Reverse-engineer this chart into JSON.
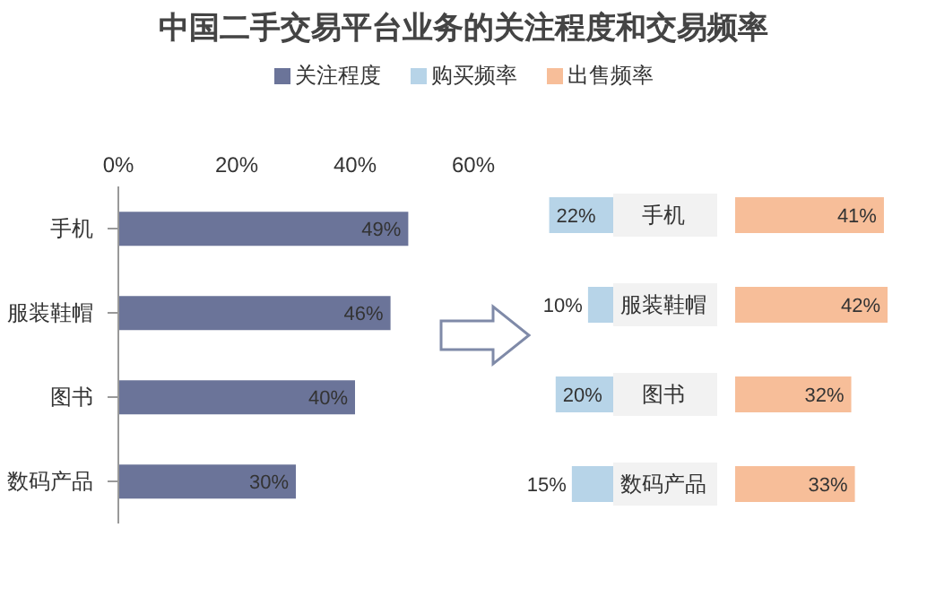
{
  "chart_data": [
    {
      "type": "bar",
      "orientation": "horizontal",
      "title": "中国二手交易平台业务的关注程度和交易频率",
      "legend": "top",
      "categories": [
        "手机",
        "服装鞋帽",
        "图书",
        "数码产品"
      ],
      "series": [
        {
          "name": "关注程度",
          "color": "#6b7499",
          "values": [
            49,
            46,
            40,
            30
          ],
          "value_labels": [
            "49%",
            "46%",
            "40%",
            "30%"
          ]
        }
      ],
      "xlim": [
        0,
        60
      ],
      "xticks": [
        {
          "value": 0,
          "label": "0%"
        },
        {
          "value": 20,
          "label": "20%"
        },
        {
          "value": 40,
          "label": "40%"
        },
        {
          "value": 60,
          "label": "60%"
        }
      ],
      "grid": false
    },
    {
      "type": "bar",
      "orientation": "horizontal",
      "legend": "top",
      "categories": [
        null,
        null,
        null,
        null
      ],
      "tick_labels": false,
      "series": [
        {
          "name": "购买频率",
          "color": "#b7d4e8",
          "values": [
            22,
            10,
            20,
            15
          ],
          "value_labels": [
            "22%",
            "10%",
            "20%",
            "15%"
          ]
        }
      ]
    },
    {
      "type": "bar",
      "orientation": "horizontal",
      "legend": "top",
      "categories": [
        "手机",
        "服装鞋帽",
        "图书",
        "数码产品"
      ],
      "tick_labels": "y",
      "series": [
        {
          "name": "出售频率",
          "color": "#f7be99",
          "values": [
            41,
            42,
            32,
            33
          ],
          "value_labels": [
            "41%",
            "42%",
            "32%",
            "33%"
          ]
        }
      ]
    }
  ]
}
